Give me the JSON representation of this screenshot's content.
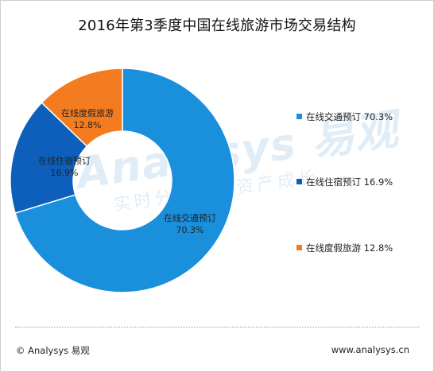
{
  "chart_data": {
    "type": "pie",
    "title": "2016年第3季度中国在线旅游市场交易结构",
    "categories": [
      "在线交通预订",
      "在线住宿预订",
      "在线度假旅游"
    ],
    "values": [
      70.3,
      16.9,
      12.8
    ],
    "value_labels": [
      "70.3%",
      "16.9%",
      "12.8%"
    ],
    "colors": [
      "#1a8fdc",
      "#0d5fbb",
      "#f47c20"
    ],
    "legend_position": "right",
    "donut": true
  },
  "watermark": {
    "brand": "Analysys 易观",
    "slogan": "实时分析用户资产成长"
  },
  "footer": {
    "left": "© Analysys 易观",
    "right": "www.analysys.cn"
  }
}
